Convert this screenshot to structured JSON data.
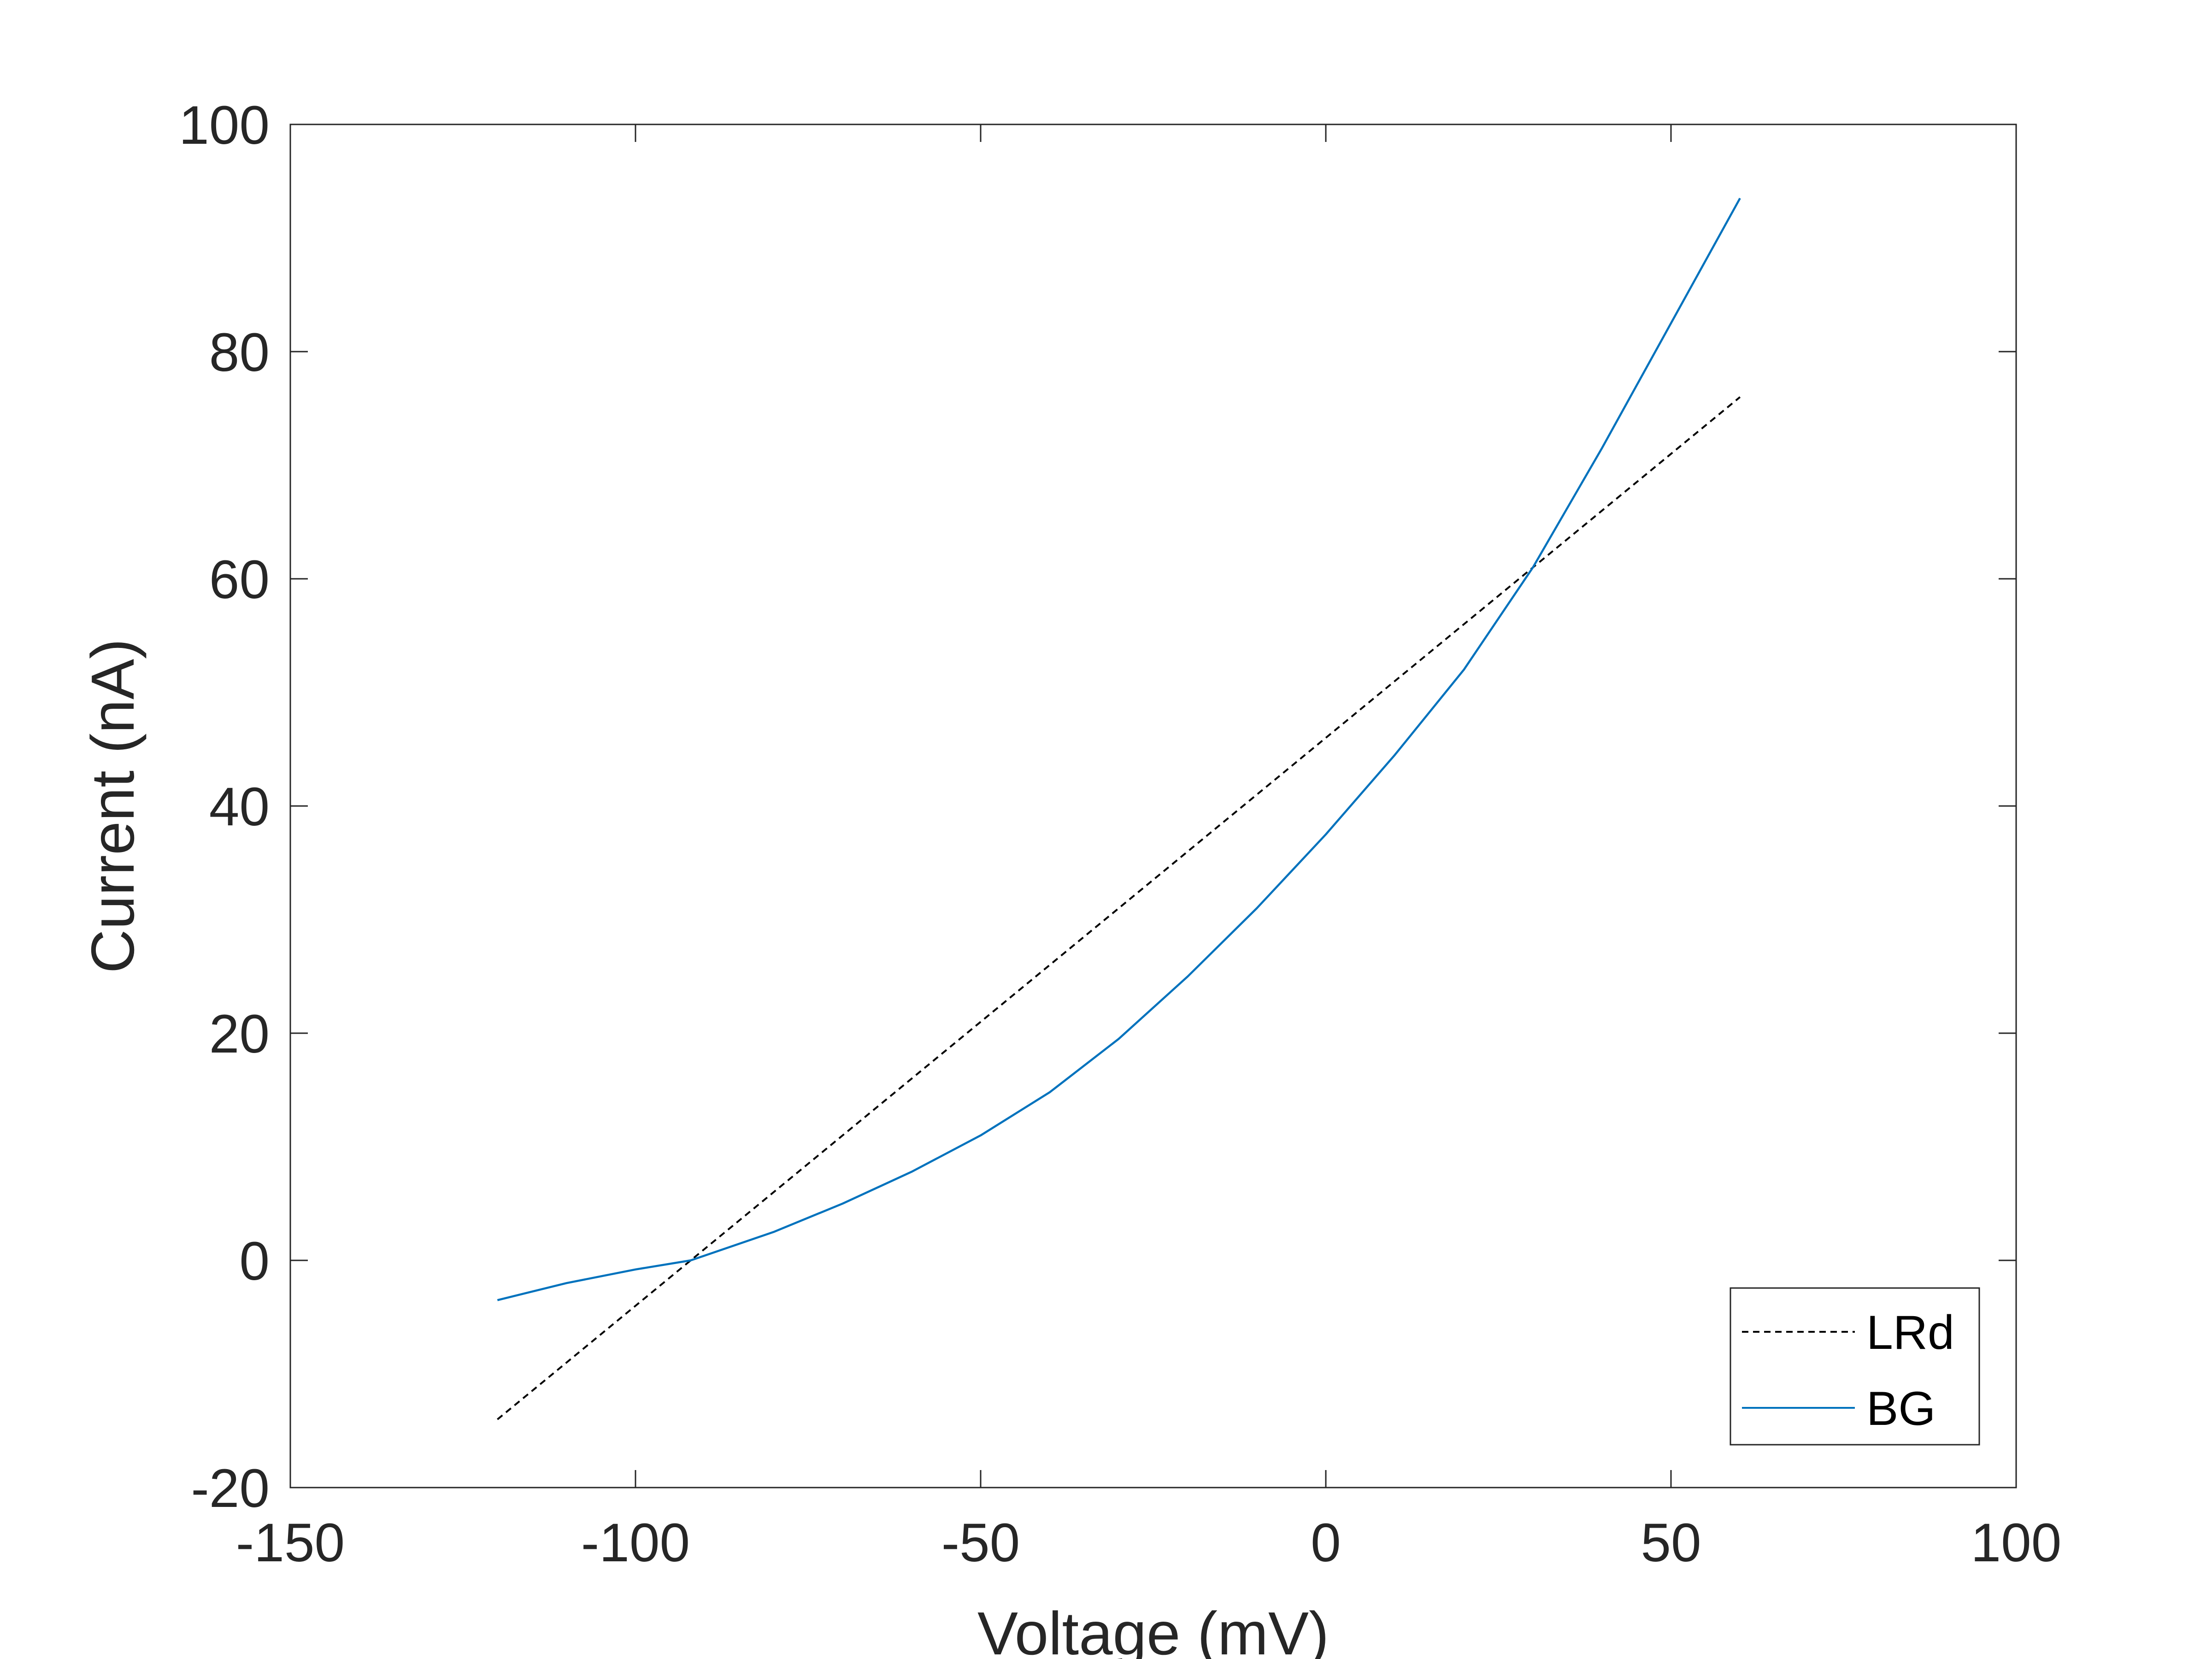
{
  "chart_data": {
    "type": "line",
    "title": "",
    "xlabel": "Voltage (mV)",
    "ylabel": "Current (nA)",
    "xlim": [
      -150,
      100
    ],
    "ylim": [
      -20,
      100
    ],
    "xticks": [
      -150,
      -100,
      -50,
      0,
      50,
      100
    ],
    "yticks": [
      -20,
      0,
      20,
      40,
      60,
      80,
      100
    ],
    "xtick_labels": [
      "-150",
      "-100",
      "-50",
      "0",
      "50",
      "100"
    ],
    "ytick_labels": [
      "-20",
      "0",
      "20",
      "40",
      "60",
      "80",
      "100"
    ],
    "grid": false,
    "legend": {
      "position": "bottom-right"
    },
    "series": [
      {
        "name": "LRd",
        "color": "#000000",
        "style": "dashed",
        "x": [
          -120,
          60
        ],
        "y": [
          -14.0,
          76.0
        ]
      },
      {
        "name": "BG",
        "color": "#0072BD",
        "style": "solid",
        "x": [
          -120,
          -110,
          -100,
          -92,
          -80,
          -70,
          -60,
          -50,
          -40,
          -30,
          -20,
          -10,
          0,
          10,
          20,
          30,
          40,
          50,
          60
        ],
        "y": [
          -3.5,
          -2.0,
          -0.8,
          0.0,
          2.5,
          5.0,
          7.8,
          11.0,
          14.8,
          19.5,
          25.0,
          31.0,
          37.5,
          44.5,
          52.0,
          61.0,
          71.5,
          82.5,
          93.5
        ]
      }
    ]
  }
}
